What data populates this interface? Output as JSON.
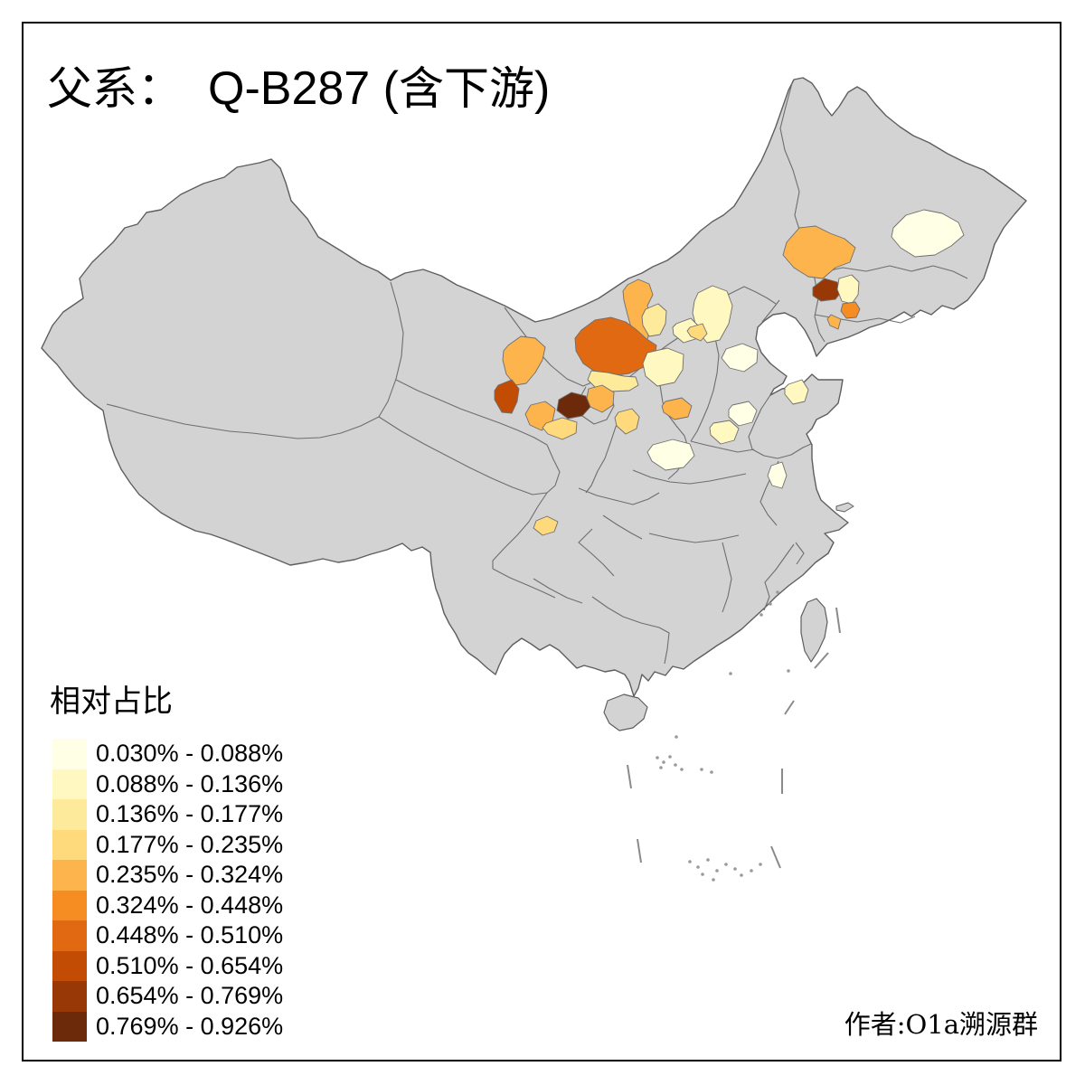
{
  "title": {
    "family_label": "父系：",
    "haplogroup": "Q-B287",
    "open_paren": "(",
    "suffix_cn": "含下游",
    "close_paren": ")"
  },
  "legend": {
    "title": "相对占比",
    "classes": [
      {
        "label": "0.030% - 0.088%",
        "color": "#FFFFE5"
      },
      {
        "label": "0.088% - 0.136%",
        "color": "#FFF8C1"
      },
      {
        "label": "0.136% - 0.177%",
        "color": "#FEEA9B"
      },
      {
        "label": "0.177% - 0.235%",
        "color": "#FEDA7C"
      },
      {
        "label": "0.235% - 0.324%",
        "color": "#FDB44C"
      },
      {
        "label": "0.324% - 0.448%",
        "color": "#F68D22"
      },
      {
        "label": "0.448% - 0.510%",
        "color": "#E06912"
      },
      {
        "label": "0.510% - 0.654%",
        "color": "#C24C03"
      },
      {
        "label": "0.654% - 0.769%",
        "color": "#983807"
      },
      {
        "label": "0.769% - 0.926%",
        "color": "#6C2A0B"
      }
    ]
  },
  "attribution": "作者:O1a溯源群",
  "map": {
    "sea_fill": "#FFFFFF",
    "land_fill": "#D3D3D3",
    "border_color": "#6E6E6E",
    "outline_color": "#5E5E5E",
    "regions": [
      {
        "id": "region-ne-1",
        "legend_class": 1
      },
      {
        "id": "region-ne-2",
        "legend_class": 5
      },
      {
        "id": "region-ne-3",
        "legend_class": 9
      },
      {
        "id": "region-ne-4",
        "legend_class": 2
      },
      {
        "id": "region-ne-5",
        "legend_class": 6
      },
      {
        "id": "region-ne-6",
        "legend_class": 5
      },
      {
        "id": "region-nm-1",
        "legend_class": 5
      },
      {
        "id": "region-nm-2",
        "legend_class": 7
      },
      {
        "id": "region-nm-3",
        "legend_class": 3
      },
      {
        "id": "region-nm-4",
        "legend_class": 3
      },
      {
        "id": "region-gs-1",
        "legend_class": 5
      },
      {
        "id": "region-gs-2",
        "legend_class": 8
      },
      {
        "id": "region-gs-3",
        "legend_class": 10
      },
      {
        "id": "region-gs-4",
        "legend_class": 5
      },
      {
        "id": "region-gs-5",
        "legend_class": 5
      },
      {
        "id": "region-gs-6",
        "legend_class": 4
      },
      {
        "id": "region-gs-7",
        "legend_class": 4
      },
      {
        "id": "region-hb-1",
        "legend_class": 2
      },
      {
        "id": "region-sx-1",
        "legend_class": 2
      },
      {
        "id": "region-nm-5",
        "legend_class": 4
      },
      {
        "id": "region-sx-2",
        "legend_class": 2
      },
      {
        "id": "region-bj-1",
        "legend_class": 1
      },
      {
        "id": "region-hb-2",
        "legend_class": 1
      },
      {
        "id": "region-hb-3",
        "legend_class": 2
      },
      {
        "id": "region-sx-3",
        "legend_class": 5
      },
      {
        "id": "region-hn-1",
        "legend_class": 1
      },
      {
        "id": "region-sd-1",
        "legend_class": 2
      },
      {
        "id": "region-js-1",
        "legend_class": 1
      },
      {
        "id": "region-sc-1",
        "legend_class": 4
      }
    ]
  }
}
